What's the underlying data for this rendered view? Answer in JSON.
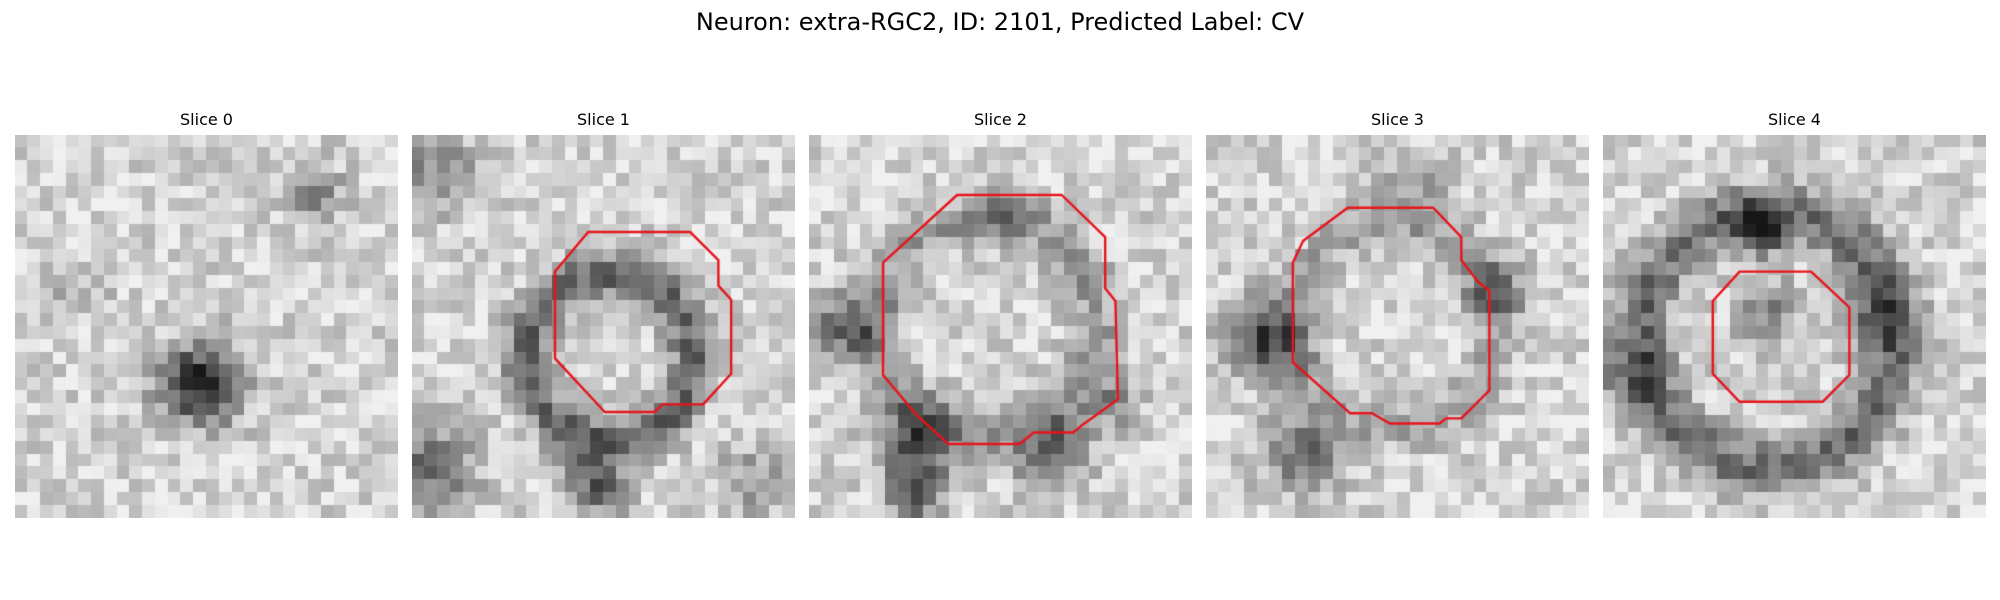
{
  "figure": {
    "title": "Neuron: extra-RGC2, ID: 2101, Predicted Label: CV"
  },
  "colors": {
    "contour": "#e8141c",
    "background": "#ffffff"
  },
  "slices": [
    {
      "label": "Slice 0",
      "has_contour": false
    },
    {
      "label": "Slice 1",
      "has_contour": true
    },
    {
      "label": "Slice 2",
      "has_contour": true
    },
    {
      "label": "Slice 3",
      "has_contour": true
    },
    {
      "label": "Slice 4",
      "has_contour": true
    }
  ]
}
